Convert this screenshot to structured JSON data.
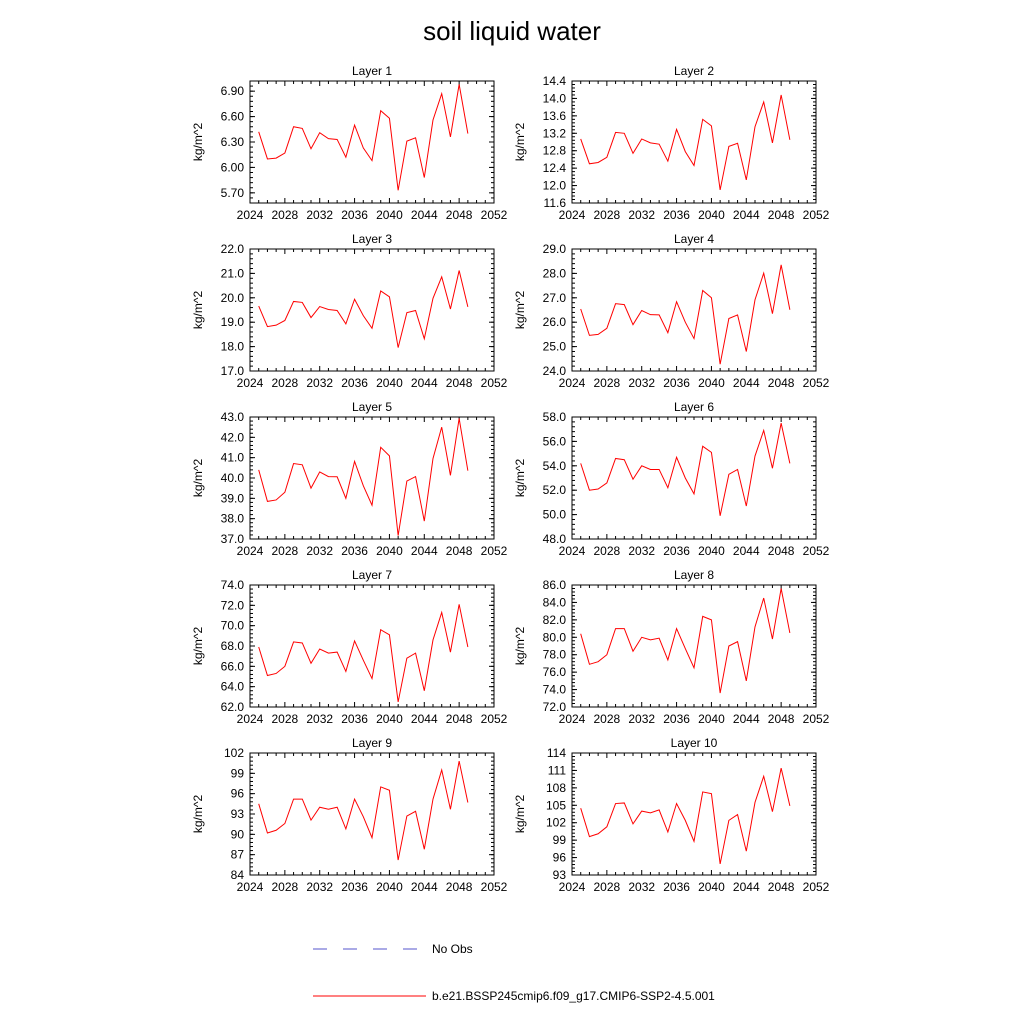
{
  "figure": {
    "title": "soil liquid water"
  },
  "legend": {
    "entries": [
      {
        "label": "No Obs",
        "color": "#5555cc",
        "style": "dashed"
      },
      {
        "label": "b.e21.BSSP245cmip6.f09_g17.CMIP6-SSP2-4.5.001",
        "color": "#ff0000",
        "style": "solid"
      }
    ]
  },
  "chart_data": [
    {
      "type": "line",
      "title": "Layer 1",
      "ylabel": "kg/m^2",
      "xlim": [
        2024,
        2052
      ],
      "xticks": [
        2024,
        2028,
        2032,
        2036,
        2040,
        2044,
        2048,
        2052
      ],
      "ylim": [
        5.58,
        7.02
      ],
      "yticks": [
        "5.70",
        "6.00",
        "6.30",
        "6.60",
        "6.90"
      ],
      "x": [
        2025,
        2026,
        2027,
        2028,
        2029,
        2030,
        2031,
        2032,
        2033,
        2034,
        2035,
        2036,
        2037,
        2038,
        2039,
        2040,
        2041,
        2042,
        2043,
        2044,
        2045,
        2046,
        2047,
        2048,
        2049
      ],
      "series": [
        {
          "values": [
            6.42,
            6.1,
            6.11,
            6.17,
            6.48,
            6.46,
            6.22,
            6.41,
            6.34,
            6.33,
            6.12,
            6.5,
            6.23,
            6.08,
            6.67,
            6.58,
            5.73,
            6.31,
            6.35,
            5.88,
            6.56,
            6.87,
            6.36,
            6.98,
            6.4
          ],
          "color": "#ff0000"
        }
      ]
    },
    {
      "type": "line",
      "title": "Layer 2",
      "ylabel": "kg/m^2",
      "xlim": [
        2024,
        2052
      ],
      "xticks": [
        2024,
        2028,
        2032,
        2036,
        2040,
        2044,
        2048,
        2052
      ],
      "ylim": [
        11.6,
        14.4
      ],
      "yticks": [
        "11.6",
        "12.0",
        "12.4",
        "12.8",
        "13.2",
        "13.6",
        "14.0",
        "14.4"
      ],
      "x": [
        2025,
        2026,
        2027,
        2028,
        2029,
        2030,
        2031,
        2032,
        2033,
        2034,
        2035,
        2036,
        2037,
        2038,
        2039,
        2040,
        2041,
        2042,
        2043,
        2044,
        2045,
        2046,
        2047,
        2048,
        2049
      ],
      "series": [
        {
          "values": [
            13.07,
            12.5,
            12.53,
            12.65,
            13.22,
            13.2,
            12.74,
            13.07,
            12.98,
            12.95,
            12.56,
            13.29,
            12.78,
            12.46,
            13.52,
            13.37,
            11.9,
            12.9,
            12.97,
            12.13,
            13.35,
            13.92,
            12.98,
            14.08,
            13.05
          ],
          "color": "#ff0000"
        }
      ]
    },
    {
      "type": "line",
      "title": "Layer 3",
      "ylabel": "kg/m^2",
      "xlim": [
        2024,
        2052
      ],
      "xticks": [
        2024,
        2028,
        2032,
        2036,
        2040,
        2044,
        2048,
        2052
      ],
      "ylim": [
        17.0,
        22.0
      ],
      "yticks": [
        "17.0",
        "18.0",
        "19.0",
        "20.0",
        "21.0",
        "22.0"
      ],
      "x": [
        2025,
        2026,
        2027,
        2028,
        2029,
        2030,
        2031,
        2032,
        2033,
        2034,
        2035,
        2036,
        2037,
        2038,
        2039,
        2040,
        2041,
        2042,
        2043,
        2044,
        2045,
        2046,
        2047,
        2048,
        2049
      ],
      "series": [
        {
          "values": [
            19.66,
            18.82,
            18.88,
            19.07,
            19.85,
            19.81,
            19.19,
            19.64,
            19.52,
            19.48,
            18.93,
            19.94,
            19.27,
            18.75,
            20.28,
            20.04,
            17.96,
            19.39,
            19.48,
            18.32,
            19.98,
            20.86,
            19.54,
            21.12,
            19.63
          ],
          "color": "#ff0000"
        }
      ]
    },
    {
      "type": "line",
      "title": "Layer 4",
      "ylabel": "kg/m^2",
      "xlim": [
        2024,
        2052
      ],
      "xticks": [
        2024,
        2028,
        2032,
        2036,
        2040,
        2044,
        2048,
        2052
      ],
      "ylim": [
        24.0,
        29.0
      ],
      "yticks": [
        "24.0",
        "25.0",
        "26.0",
        "27.0",
        "28.0",
        "29.0"
      ],
      "x": [
        2025,
        2026,
        2027,
        2028,
        2029,
        2030,
        2031,
        2032,
        2033,
        2034,
        2035,
        2036,
        2037,
        2038,
        2039,
        2040,
        2041,
        2042,
        2043,
        2044,
        2045,
        2046,
        2047,
        2048,
        2049
      ],
      "series": [
        {
          "values": [
            26.54,
            25.46,
            25.5,
            25.75,
            26.76,
            26.72,
            25.9,
            26.48,
            26.31,
            26.3,
            25.57,
            26.84,
            26.0,
            25.33,
            27.3,
            27.0,
            24.28,
            26.15,
            26.3,
            24.8,
            26.92,
            28.01,
            26.35,
            28.35,
            26.51
          ],
          "color": "#ff0000"
        }
      ]
    },
    {
      "type": "line",
      "title": "Layer 5",
      "ylabel": "kg/m^2",
      "xlim": [
        2024,
        2052
      ],
      "xticks": [
        2024,
        2028,
        2032,
        2036,
        2040,
        2044,
        2048,
        2052
      ],
      "ylim": [
        37.0,
        43.0
      ],
      "yticks": [
        "37.0",
        "38.0",
        "39.0",
        "40.0",
        "41.0",
        "42.0",
        "43.0"
      ],
      "x": [
        2025,
        2026,
        2027,
        2028,
        2029,
        2030,
        2031,
        2032,
        2033,
        2034,
        2035,
        2036,
        2037,
        2038,
        2039,
        2040,
        2041,
        2042,
        2043,
        2044,
        2045,
        2046,
        2047,
        2048,
        2049
      ],
      "series": [
        {
          "values": [
            40.4,
            38.85,
            38.92,
            39.3,
            40.71,
            40.65,
            39.5,
            40.3,
            40.07,
            40.06,
            39.0,
            40.82,
            39.62,
            38.66,
            41.51,
            41.09,
            37.17,
            39.85,
            40.07,
            37.88,
            40.96,
            42.5,
            40.13,
            42.93,
            40.36
          ],
          "color": "#ff0000"
        }
      ]
    },
    {
      "type": "line",
      "title": "Layer 6",
      "ylabel": "kg/m^2",
      "xlim": [
        2024,
        2052
      ],
      "xticks": [
        2024,
        2028,
        2032,
        2036,
        2040,
        2044,
        2048,
        2052
      ],
      "ylim": [
        48.0,
        58.0
      ],
      "yticks": [
        "48.0",
        "50.0",
        "52.0",
        "54.0",
        "56.0",
        "58.0"
      ],
      "x": [
        2025,
        2026,
        2027,
        2028,
        2029,
        2030,
        2031,
        2032,
        2033,
        2034,
        2035,
        2036,
        2037,
        2038,
        2039,
        2040,
        2041,
        2042,
        2043,
        2044,
        2045,
        2046,
        2047,
        2048,
        2049
      ],
      "series": [
        {
          "values": [
            54.2,
            52.0,
            52.1,
            52.6,
            54.6,
            54.5,
            52.9,
            54.0,
            53.7,
            53.7,
            52.2,
            54.7,
            53.0,
            51.7,
            55.6,
            55.1,
            49.9,
            53.3,
            53.7,
            50.7,
            54.8,
            56.9,
            53.8,
            57.5,
            54.2
          ],
          "color": "#ff0000"
        }
      ]
    },
    {
      "type": "line",
      "title": "Layer 7",
      "ylabel": "kg/m^2",
      "xlim": [
        2024,
        2052
      ],
      "xticks": [
        2024,
        2028,
        2032,
        2036,
        2040,
        2044,
        2048,
        2052
      ],
      "ylim": [
        62.0,
        74.0
      ],
      "yticks": [
        "62.0",
        "64.0",
        "66.0",
        "68.0",
        "70.0",
        "72.0",
        "74.0"
      ],
      "x": [
        2025,
        2026,
        2027,
        2028,
        2029,
        2030,
        2031,
        2032,
        2033,
        2034,
        2035,
        2036,
        2037,
        2038,
        2039,
        2040,
        2041,
        2042,
        2043,
        2044,
        2045,
        2046,
        2047,
        2048,
        2049
      ],
      "series": [
        {
          "values": [
            67.9,
            65.1,
            65.3,
            66.0,
            68.4,
            68.3,
            66.3,
            67.7,
            67.3,
            67.4,
            65.5,
            68.5,
            66.6,
            64.8,
            69.6,
            69.1,
            62.5,
            66.8,
            67.3,
            63.6,
            68.6,
            71.3,
            67.4,
            72.1,
            67.9
          ],
          "color": "#ff0000"
        }
      ]
    },
    {
      "type": "line",
      "title": "Layer 8",
      "ylabel": "kg/m^2",
      "xlim": [
        2024,
        2052
      ],
      "xticks": [
        2024,
        2028,
        2032,
        2036,
        2040,
        2044,
        2048,
        2052
      ],
      "ylim": [
        72.0,
        86.0
      ],
      "yticks": [
        "72.0",
        "74.0",
        "76.0",
        "78.0",
        "80.0",
        "82.0",
        "84.0",
        "86.0"
      ],
      "x": [
        2025,
        2026,
        2027,
        2028,
        2029,
        2030,
        2031,
        2032,
        2033,
        2034,
        2035,
        2036,
        2037,
        2038,
        2039,
        2040,
        2041,
        2042,
        2043,
        2044,
        2045,
        2046,
        2047,
        2048,
        2049
      ],
      "series": [
        {
          "values": [
            80.4,
            76.9,
            77.2,
            78.0,
            81.0,
            81.0,
            78.4,
            80.0,
            79.7,
            79.9,
            77.4,
            81.0,
            78.7,
            76.5,
            82.4,
            82.0,
            73.6,
            79.0,
            79.5,
            75.0,
            81.2,
            84.5,
            79.8,
            85.6,
            80.5
          ],
          "color": "#ff0000"
        }
      ]
    },
    {
      "type": "line",
      "title": "Layer 9",
      "ylabel": "kg/m^2",
      "xlim": [
        2024,
        2052
      ],
      "xticks": [
        2024,
        2028,
        2032,
        2036,
        2040,
        2044,
        2048,
        2052
      ],
      "ylim": [
        84,
        102
      ],
      "yticks": [
        "84",
        "87",
        "90",
        "93",
        "96",
        "99",
        "102"
      ],
      "x": [
        2025,
        2026,
        2027,
        2028,
        2029,
        2030,
        2031,
        2032,
        2033,
        2034,
        2035,
        2036,
        2037,
        2038,
        2039,
        2040,
        2041,
        2042,
        2043,
        2044,
        2045,
        2046,
        2047,
        2048,
        2049
      ],
      "series": [
        {
          "values": [
            94.5,
            90.2,
            90.6,
            91.6,
            95.2,
            95.2,
            92.1,
            94.0,
            93.7,
            94.0,
            90.8,
            95.2,
            92.6,
            89.5,
            97.0,
            96.5,
            86.2,
            92.7,
            93.4,
            87.8,
            95.2,
            99.5,
            93.7,
            100.8,
            94.7
          ],
          "color": "#ff0000"
        }
      ]
    },
    {
      "type": "line",
      "title": "Layer 10",
      "ylabel": "kg/m^2",
      "xlim": [
        2024,
        2052
      ],
      "xticks": [
        2024,
        2028,
        2032,
        2036,
        2040,
        2044,
        2048,
        2052
      ],
      "ylim": [
        93,
        114
      ],
      "yticks": [
        "93",
        "96",
        "99",
        "102",
        "105",
        "108",
        "111",
        "114"
      ],
      "x": [
        2025,
        2026,
        2027,
        2028,
        2029,
        2030,
        2031,
        2032,
        2033,
        2034,
        2035,
        2036,
        2037,
        2038,
        2039,
        2040,
        2041,
        2042,
        2043,
        2044,
        2045,
        2046,
        2047,
        2048,
        2049
      ],
      "series": [
        {
          "values": [
            104.5,
            99.6,
            100.1,
            101.3,
            105.3,
            105.4,
            101.8,
            104.0,
            103.7,
            104.2,
            100.4,
            105.3,
            102.4,
            98.8,
            107.3,
            107.0,
            94.9,
            102.4,
            103.4,
            97.1,
            105.5,
            110.0,
            103.9,
            111.4,
            104.9
          ],
          "color": "#ff0000"
        }
      ]
    }
  ]
}
